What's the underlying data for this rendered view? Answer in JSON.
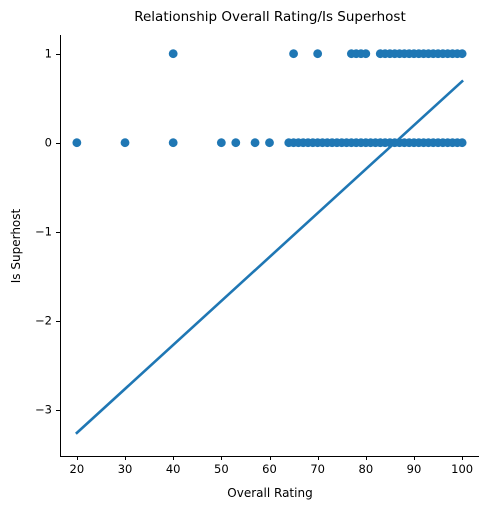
{
  "chart_data": {
    "type": "scatter",
    "title": "Relationship Overall Rating/Is Superhost",
    "xlabel": "Overall Rating",
    "ylabel": "Is Superhost",
    "xlim": [
      16.5,
      103.5
    ],
    "ylim": [
      -3.52,
      1.21
    ],
    "xticks": [
      20,
      30,
      40,
      50,
      60,
      70,
      80,
      90,
      100
    ],
    "yticks": [
      1,
      0,
      -1,
      -2,
      -3
    ],
    "ytick_labels": [
      "1",
      "0",
      "−1",
      "−2",
      "−3"
    ],
    "grid": false,
    "color": "#1f77b4",
    "points": [
      {
        "x": 40,
        "y": 1
      },
      {
        "x": 65,
        "y": 1
      },
      {
        "x": 70,
        "y": 1
      },
      {
        "x": 77,
        "y": 1
      },
      {
        "x": 78,
        "y": 1
      },
      {
        "x": 79,
        "y": 1
      },
      {
        "x": 80,
        "y": 1
      },
      {
        "x": 83,
        "y": 1
      },
      {
        "x": 84,
        "y": 1
      },
      {
        "x": 85,
        "y": 1
      },
      {
        "x": 86,
        "y": 1
      },
      {
        "x": 87,
        "y": 1
      },
      {
        "x": 88,
        "y": 1
      },
      {
        "x": 89,
        "y": 1
      },
      {
        "x": 90,
        "y": 1
      },
      {
        "x": 91,
        "y": 1
      },
      {
        "x": 92,
        "y": 1
      },
      {
        "x": 93,
        "y": 1
      },
      {
        "x": 94,
        "y": 1
      },
      {
        "x": 95,
        "y": 1
      },
      {
        "x": 96,
        "y": 1
      },
      {
        "x": 97,
        "y": 1
      },
      {
        "x": 98,
        "y": 1
      },
      {
        "x": 99,
        "y": 1
      },
      {
        "x": 100,
        "y": 1
      },
      {
        "x": 20,
        "y": 0
      },
      {
        "x": 30,
        "y": 0
      },
      {
        "x": 40,
        "y": 0
      },
      {
        "x": 50,
        "y": 0
      },
      {
        "x": 53,
        "y": 0
      },
      {
        "x": 57,
        "y": 0
      },
      {
        "x": 60,
        "y": 0
      },
      {
        "x": 64,
        "y": 0
      },
      {
        "x": 65,
        "y": 0
      },
      {
        "x": 66,
        "y": 0
      },
      {
        "x": 67,
        "y": 0
      },
      {
        "x": 68,
        "y": 0
      },
      {
        "x": 69,
        "y": 0
      },
      {
        "x": 70,
        "y": 0
      },
      {
        "x": 71,
        "y": 0
      },
      {
        "x": 72,
        "y": 0
      },
      {
        "x": 73,
        "y": 0
      },
      {
        "x": 74,
        "y": 0
      },
      {
        "x": 75,
        "y": 0
      },
      {
        "x": 76,
        "y": 0
      },
      {
        "x": 77,
        "y": 0
      },
      {
        "x": 78,
        "y": 0
      },
      {
        "x": 79,
        "y": 0
      },
      {
        "x": 80,
        "y": 0
      },
      {
        "x": 81,
        "y": 0
      },
      {
        "x": 82,
        "y": 0
      },
      {
        "x": 83,
        "y": 0
      },
      {
        "x": 84,
        "y": 0
      },
      {
        "x": 85,
        "y": 0
      },
      {
        "x": 86,
        "y": 0
      },
      {
        "x": 87,
        "y": 0
      },
      {
        "x": 88,
        "y": 0
      },
      {
        "x": 89,
        "y": 0
      },
      {
        "x": 90,
        "y": 0
      },
      {
        "x": 91,
        "y": 0
      },
      {
        "x": 92,
        "y": 0
      },
      {
        "x": 93,
        "y": 0
      },
      {
        "x": 94,
        "y": 0
      },
      {
        "x": 95,
        "y": 0
      },
      {
        "x": 96,
        "y": 0
      },
      {
        "x": 97,
        "y": 0
      },
      {
        "x": 98,
        "y": 0
      },
      {
        "x": 99,
        "y": 0
      },
      {
        "x": 100,
        "y": 0
      }
    ],
    "regression_line": {
      "x": [
        20,
        100
      ],
      "y": [
        -3.26,
        0.69
      ]
    }
  }
}
